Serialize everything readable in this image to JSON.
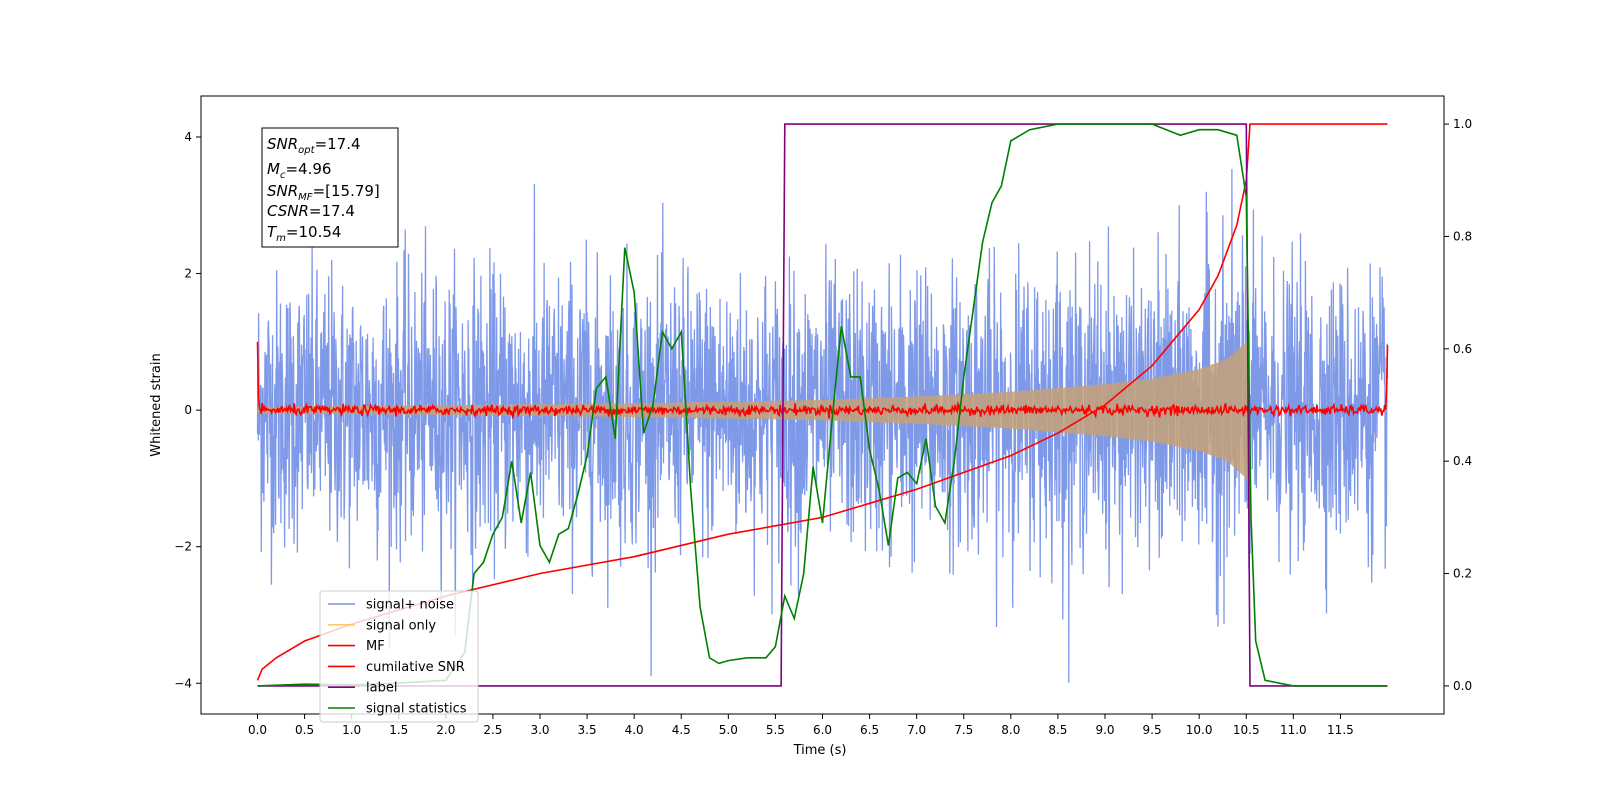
{
  "chart_data": {
    "type": "line",
    "xlabel": "Time (s)",
    "ylabel": "Whitened strain",
    "xlim": [
      -0.6,
      12.6
    ],
    "ylim_left": [
      -4.45,
      4.6
    ],
    "ylim_right": [
      -0.05,
      1.05
    ],
    "x_ticks": [
      0.0,
      0.5,
      1.0,
      1.5,
      2.0,
      2.5,
      3.0,
      3.5,
      4.0,
      4.5,
      5.0,
      5.5,
      6.0,
      6.5,
      7.0,
      7.5,
      8.0,
      8.5,
      9.0,
      9.5,
      10.0,
      10.5,
      11.0,
      11.5
    ],
    "x_tick_labels": [
      "0.0",
      "0.5",
      "1.0",
      "1.5",
      "2.0",
      "2.5",
      "3.0",
      "3.5",
      "4.0",
      "4.5",
      "5.0",
      "5.5",
      "6.0",
      "6.5",
      "7.0",
      "7.5",
      "8.0",
      "8.5",
      "9.0",
      "9.5",
      "10.0",
      "10.5",
      "11.0",
      "11.5"
    ],
    "y_left_ticks": [
      -4,
      -2,
      0,
      2,
      4
    ],
    "y_left_tick_labels": [
      "−4",
      "−2",
      "0",
      "2",
      "4"
    ],
    "y_right_ticks": [
      0.0,
      0.2,
      0.4,
      0.6,
      0.8,
      1.0
    ],
    "y_right_tick_labels": [
      "0.0",
      "0.2",
      "0.4",
      "0.6",
      "0.8",
      "1.0"
    ],
    "info_box": {
      "snr_opt": {
        "main": "SNR",
        "sub": "opt",
        "value": "=17.4"
      },
      "mc": {
        "main": "M",
        "sub": "c",
        "value": "=4.96"
      },
      "snr_mf": {
        "main": "SNR",
        "sub": "MF",
        "value": "=[15.79]"
      },
      "csnr": {
        "main": "CSNR",
        "value": "=17.4"
      },
      "tm": {
        "main": "T",
        "sub": "m",
        "value": "=10.54"
      }
    },
    "legend": {
      "placement": "lower-left",
      "entries": [
        {
          "label": "signal+ noise",
          "color": "#7893e8"
        },
        {
          "label": "signal only",
          "color": "#ffc966"
        },
        {
          "label": "MF",
          "color": "#ff0000"
        },
        {
          "label": "cumilative SNR",
          "color": "#ff0000"
        },
        {
          "label": "label",
          "color": "#800080"
        },
        {
          "label": "signal statistics",
          "color": "#008000"
        }
      ]
    },
    "series": [
      {
        "name": "signal+ noise",
        "axis": "left",
        "color": "#7893e8",
        "description_values": {
          "t_start": 0.0,
          "t_end": 12.0,
          "envelope_typical": 1.8,
          "envelope_peak": 4.1
        }
      },
      {
        "name": "signal only",
        "axis": "left",
        "color": "#c4a078",
        "envelope": {
          "x": [
            0.0,
            2.0,
            4.0,
            6.0,
            7.0,
            8.0,
            9.0,
            9.5,
            10.0,
            10.3,
            10.5,
            10.54
          ],
          "y": [
            0.05,
            0.07,
            0.1,
            0.15,
            0.2,
            0.27,
            0.38,
            0.46,
            0.6,
            0.75,
            1.0,
            1.2
          ]
        }
      },
      {
        "name": "MF",
        "axis": "left",
        "color": "#ff0000",
        "description_values": {
          "t_start": 0.0,
          "t_end": 12.0,
          "start_value": 1.0,
          "end_value": 0.95,
          "noise_amplitude": 0.08
        }
      },
      {
        "name": "cumilative SNR",
        "axis": "right",
        "color": "#ff0000",
        "x": [
          0.0,
          0.05,
          0.2,
          0.5,
          1.0,
          2.0,
          3.0,
          4.0,
          5.0,
          5.5,
          6.0,
          7.0,
          8.0,
          8.5,
          9.0,
          9.5,
          10.0,
          10.2,
          10.4,
          10.5,
          10.54,
          11.0,
          12.0
        ],
        "y": [
          0.01,
          0.03,
          0.05,
          0.08,
          0.11,
          0.16,
          0.2,
          0.23,
          0.27,
          0.285,
          0.3,
          0.35,
          0.41,
          0.45,
          0.5,
          0.57,
          0.67,
          0.73,
          0.82,
          0.9,
          1.0,
          1.0,
          1.0
        ]
      },
      {
        "name": "label",
        "axis": "right",
        "color": "#800080",
        "x": [
          0.0,
          5.56,
          5.6,
          10.5,
          10.54,
          12.0
        ],
        "y": [
          0.0,
          0.0,
          1.0,
          1.0,
          0.0,
          0.0
        ]
      },
      {
        "name": "signal statistics",
        "axis": "right",
        "color": "#008000",
        "x": [
          0.0,
          0.5,
          1.0,
          1.5,
          2.0,
          2.2,
          2.3,
          2.4,
          2.5,
          2.6,
          2.7,
          2.8,
          2.9,
          3.0,
          3.1,
          3.2,
          3.3,
          3.4,
          3.5,
          3.6,
          3.7,
          3.8,
          3.9,
          4.0,
          4.1,
          4.2,
          4.3,
          4.4,
          4.5,
          4.6,
          4.7,
          4.8,
          4.9,
          5.0,
          5.2,
          5.4,
          5.5,
          5.6,
          5.7,
          5.8,
          5.9,
          6.0,
          6.1,
          6.2,
          6.3,
          6.4,
          6.5,
          6.6,
          6.7,
          6.8,
          6.9,
          7.0,
          7.1,
          7.2,
          7.3,
          7.4,
          7.5,
          7.6,
          7.7,
          7.8,
          7.9,
          8.0,
          8.2,
          8.5,
          9.0,
          9.5,
          9.8,
          10.0,
          10.2,
          10.4,
          10.5,
          10.55,
          10.6,
          10.7,
          11.0,
          11.5,
          12.0
        ],
        "y": [
          0.0,
          0.003,
          0.002,
          0.005,
          0.01,
          0.06,
          0.2,
          0.22,
          0.27,
          0.3,
          0.4,
          0.29,
          0.38,
          0.25,
          0.22,
          0.27,
          0.28,
          0.34,
          0.41,
          0.53,
          0.55,
          0.44,
          0.78,
          0.7,
          0.45,
          0.5,
          0.63,
          0.6,
          0.63,
          0.35,
          0.14,
          0.05,
          0.04,
          0.045,
          0.05,
          0.05,
          0.07,
          0.16,
          0.12,
          0.2,
          0.39,
          0.29,
          0.47,
          0.64,
          0.55,
          0.55,
          0.42,
          0.35,
          0.25,
          0.37,
          0.38,
          0.36,
          0.44,
          0.32,
          0.29,
          0.4,
          0.55,
          0.67,
          0.79,
          0.86,
          0.89,
          0.97,
          0.99,
          1.0,
          1.0,
          1.0,
          0.98,
          0.99,
          0.99,
          0.98,
          0.87,
          0.3,
          0.08,
          0.01,
          0.0,
          0.0,
          0.0
        ]
      }
    ]
  }
}
